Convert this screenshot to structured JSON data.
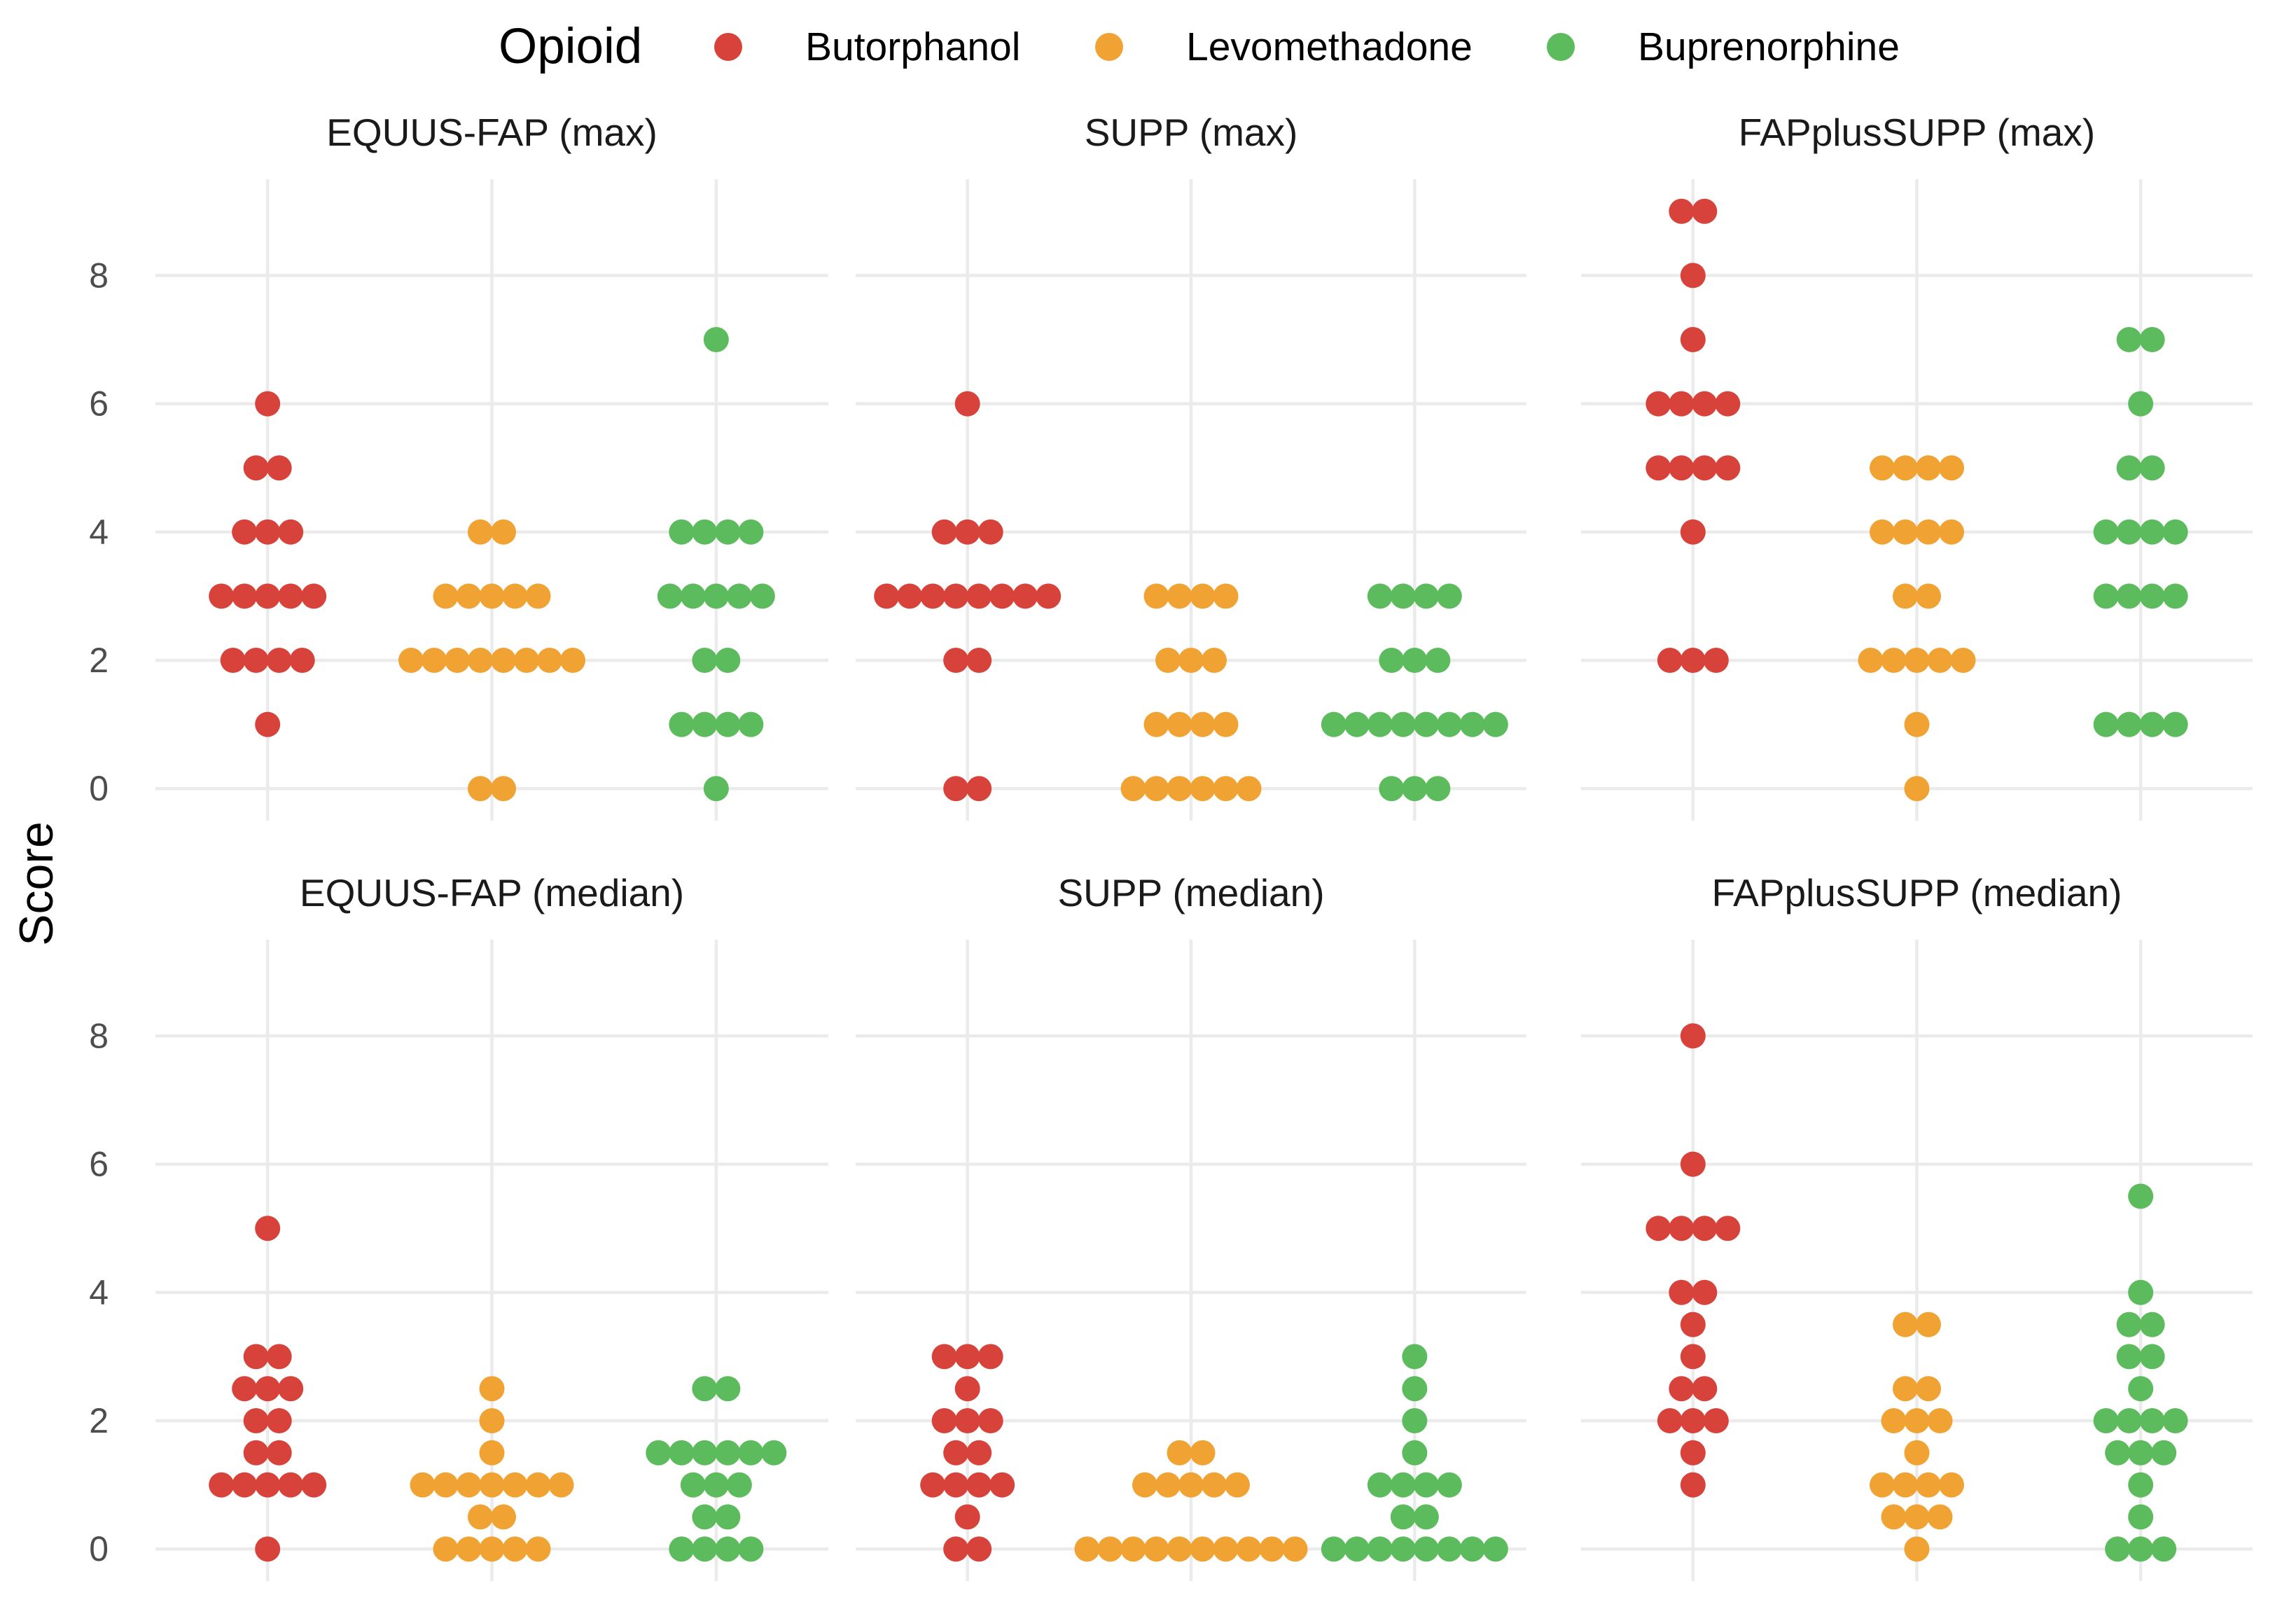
{
  "chart_data": {
    "type": "scatter",
    "subtype": "dotplot",
    "ylabel": "Score",
    "xlabel": "",
    "ylim": [
      -0.5,
      9.5
    ],
    "y_ticks": [
      0,
      2,
      4,
      6,
      8
    ],
    "grid": true,
    "legend": {
      "title": "Opioid",
      "position": "top",
      "entries": [
        {
          "name": "Butorphanol",
          "color": "#d7433b"
        },
        {
          "name": "Levomethadone",
          "color": "#f0a233"
        },
        {
          "name": "Buprenorphine",
          "color": "#5cbb5c"
        }
      ]
    },
    "groups": [
      "Butorphanol",
      "Levomethadone",
      "Buprenorphine"
    ],
    "panels": [
      {
        "title": "EQUUS-FAP (max)",
        "series": [
          {
            "name": "Butorphanol",
            "values": [
              1,
              2,
              2,
              2,
              2,
              3,
              3,
              3,
              3,
              3,
              4,
              4,
              4,
              5,
              5,
              6
            ]
          },
          {
            "name": "Levomethadone",
            "values": [
              0,
              0,
              2,
              2,
              2,
              2,
              2,
              2,
              2,
              2,
              3,
              3,
              3,
              3,
              3,
              4,
              4
            ]
          },
          {
            "name": "Buprenorphine",
            "values": [
              0,
              1,
              1,
              1,
              1,
              2,
              2,
              3,
              3,
              3,
              3,
              3,
              4,
              4,
              4,
              4,
              7
            ]
          }
        ]
      },
      {
        "title": "SUPP (max)",
        "series": [
          {
            "name": "Butorphanol",
            "values": [
              0,
              0,
              2,
              2,
              3,
              3,
              3,
              3,
              3,
              3,
              3,
              3,
              4,
              4,
              4,
              6
            ]
          },
          {
            "name": "Levomethadone",
            "values": [
              0,
              0,
              0,
              0,
              0,
              0,
              1,
              1,
              1,
              1,
              2,
              2,
              2,
              3,
              3,
              3,
              3
            ]
          },
          {
            "name": "Buprenorphine",
            "values": [
              0,
              0,
              0,
              1,
              1,
              1,
              1,
              1,
              1,
              1,
              1,
              2,
              2,
              2,
              3,
              3,
              3,
              3
            ]
          }
        ]
      },
      {
        "title": "FAPplusSUPP (max)",
        "series": [
          {
            "name": "Butorphanol",
            "values": [
              2,
              2,
              2,
              4,
              5,
              5,
              5,
              5,
              6,
              6,
              6,
              6,
              7,
              8,
              9,
              9
            ]
          },
          {
            "name": "Levomethadone",
            "values": [
              0,
              1,
              2,
              2,
              2,
              2,
              2,
              3,
              3,
              4,
              4,
              4,
              4,
              5,
              5,
              5,
              5
            ]
          },
          {
            "name": "Buprenorphine",
            "values": [
              1,
              1,
              1,
              1,
              3,
              3,
              3,
              3,
              4,
              4,
              4,
              4,
              5,
              5,
              6,
              7,
              7
            ]
          }
        ]
      },
      {
        "title": "EQUUS-FAP (median)",
        "series": [
          {
            "name": "Butorphanol",
            "values": [
              0,
              1,
              1,
              1,
              1,
              1,
              1.5,
              1.5,
              2,
              2,
              2.5,
              2.5,
              2.5,
              3,
              3,
              5
            ]
          },
          {
            "name": "Levomethadone",
            "values": [
              0,
              0,
              0,
              0,
              0,
              0.5,
              0.5,
              1,
              1,
              1,
              1,
              1,
              1,
              1,
              1.5,
              2,
              2.5
            ]
          },
          {
            "name": "Buprenorphine",
            "values": [
              0,
              0,
              0,
              0,
              0.5,
              0.5,
              1,
              1,
              1,
              1.5,
              1.5,
              1.5,
              1.5,
              1.5,
              1.5,
              2.5,
              2.5
            ]
          }
        ]
      },
      {
        "title": "SUPP (median)",
        "series": [
          {
            "name": "Butorphanol",
            "values": [
              0,
              0,
              0.5,
              1,
              1,
              1,
              1,
              1.5,
              1.5,
              2,
              2,
              2,
              2.5,
              3,
              3,
              3
            ]
          },
          {
            "name": "Levomethadone",
            "values": [
              0,
              0,
              0,
              0,
              0,
              0,
              0,
              0,
              0,
              0,
              1,
              1,
              1,
              1,
              1,
              1.5,
              1.5
            ]
          },
          {
            "name": "Buprenorphine",
            "values": [
              0,
              0,
              0,
              0,
              0,
              0,
              0,
              0,
              0.5,
              0.5,
              1,
              1,
              1,
              1,
              1.5,
              2,
              2.5,
              3
            ]
          }
        ]
      },
      {
        "title": "FAPplusSUPP (median)",
        "series": [
          {
            "name": "Butorphanol",
            "values": [
              1,
              1.5,
              2,
              2,
              2,
              2.5,
              2.5,
              3,
              3.5,
              4,
              4,
              5,
              5,
              5,
              5,
              6,
              8
            ]
          },
          {
            "name": "Levomethadone",
            "values": [
              0,
              0.5,
              0.5,
              0.5,
              1,
              1,
              1,
              1,
              1.5,
              2,
              2,
              2,
              2.5,
              2.5,
              3.5,
              3.5
            ]
          },
          {
            "name": "Buprenorphine",
            "values": [
              0,
              0,
              0,
              0.5,
              1,
              1.5,
              1.5,
              1.5,
              2,
              2,
              2,
              2,
              2.5,
              3,
              3,
              3.5,
              3.5,
              4,
              5.5
            ]
          }
        ]
      }
    ]
  }
}
